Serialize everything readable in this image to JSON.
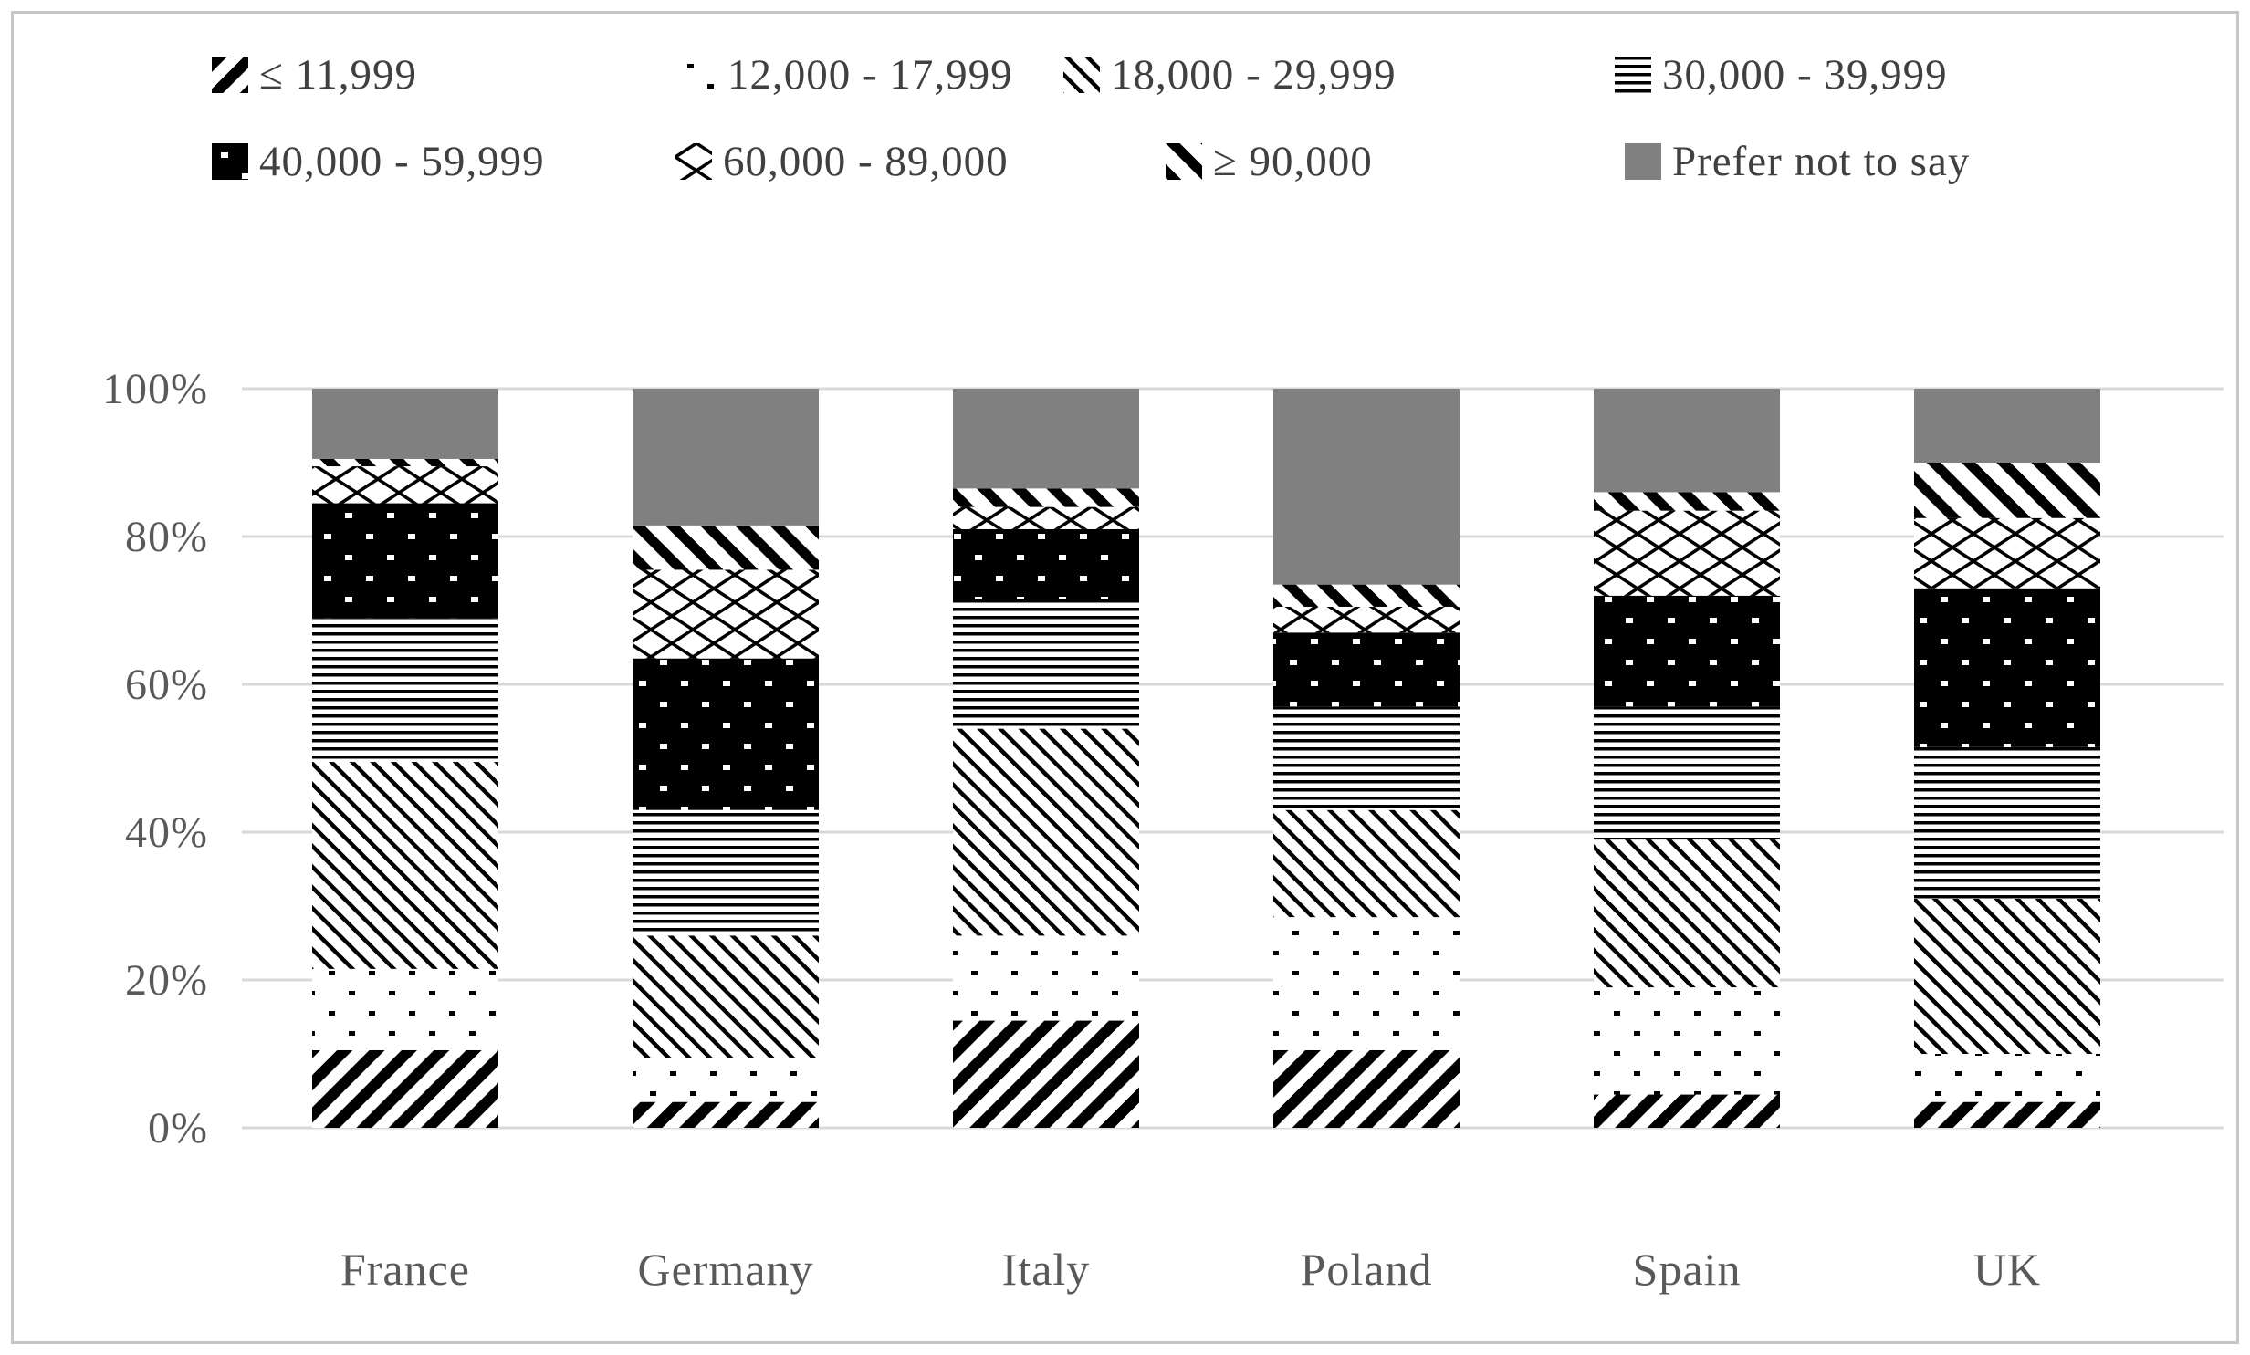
{
  "colors": {
    "grid": "#d9d9d9",
    "axis_text": "#595959",
    "legend_text": "#404040",
    "gray_fill": "#808080",
    "pattern_ink": "#000000",
    "frame_border": "#c6c6c6"
  },
  "chart_data": {
    "type": "bar",
    "subtype": "stacked-100",
    "title": "",
    "xlabel": "",
    "ylabel": "",
    "ylim": [
      0,
      100
    ],
    "grid": true,
    "legend_position": "top",
    "y_ticks": [
      "0%",
      "20%",
      "40%",
      "60%",
      "80%",
      "100%"
    ],
    "categories": [
      "France",
      "Germany",
      "Italy",
      "Poland",
      "Spain",
      "UK"
    ],
    "series": [
      {
        "name": "≤ 11,999",
        "pattern": "heavy-diagonal-up",
        "values": [
          10.5,
          3.5,
          14.5,
          10.5,
          4.5,
          3.5
        ]
      },
      {
        "name": "12,000 - 17,999",
        "pattern": "sparse-dots",
        "values": [
          11,
          6,
          11.5,
          18,
          14.5,
          6.5
        ]
      },
      {
        "name": "18,000 - 29,999",
        "pattern": "thin-diagonal-down",
        "values": [
          28,
          16.5,
          28,
          14.5,
          20,
          21
        ]
      },
      {
        "name": "30,000 - 39,999",
        "pattern": "horizontal-lines",
        "values": [
          19.5,
          17,
          17.5,
          14,
          18,
          20.5
        ]
      },
      {
        "name": "40,000 - 59,999",
        "pattern": "black-white-dots",
        "values": [
          15.5,
          20.5,
          9.5,
          10,
          15,
          21.5
        ]
      },
      {
        "name": "60,000 - 89,000",
        "pattern": "diamond-crosshatch",
        "values": [
          5,
          12,
          3,
          3.5,
          11.5,
          9.5
        ]
      },
      {
        "name": "≥ 90,000",
        "pattern": "bold-diagonal-down",
        "values": [
          1,
          6,
          2.5,
          3,
          2.5,
          7.5
        ]
      },
      {
        "name": "Prefer not to say",
        "pattern": "solid-gray",
        "values": [
          9.5,
          18.5,
          13.5,
          26.5,
          14,
          10
        ]
      }
    ]
  }
}
